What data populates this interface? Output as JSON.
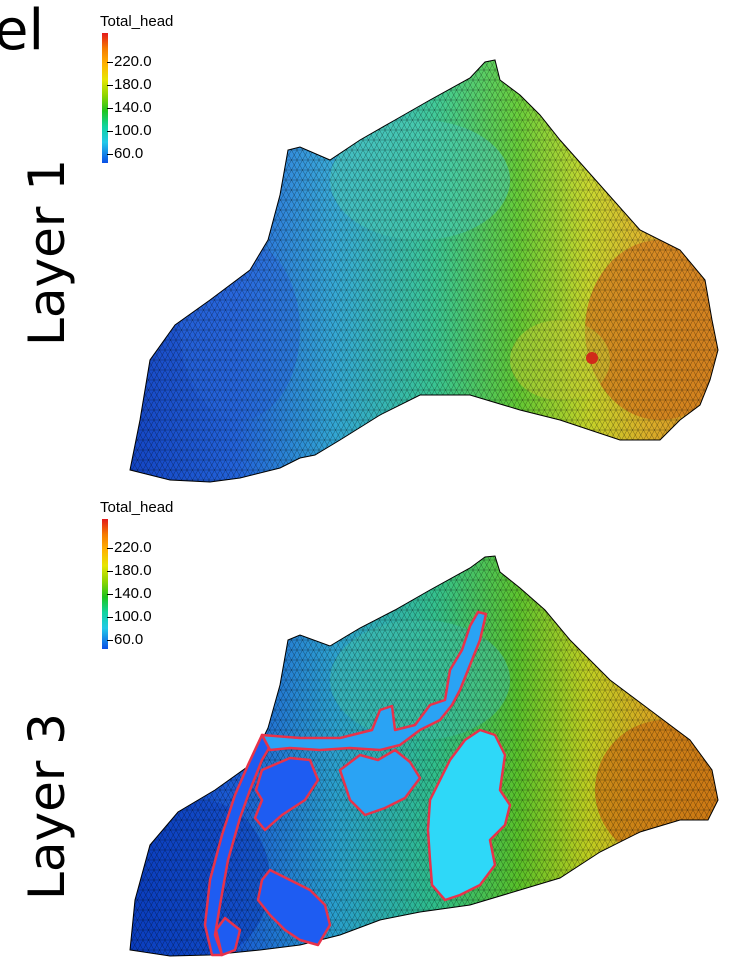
{
  "page": {
    "partial_title": "el",
    "panels": [
      {
        "label": "Layer 1"
      },
      {
        "label": "Layer 3"
      }
    ]
  },
  "legend": {
    "title": "Total_head",
    "ticks": [
      "220.0",
      "180.0",
      "140.0",
      "100.0",
      "60.0"
    ],
    "colors": {
      "low": "#0a4fe6",
      "mid_low": "#22c9e8",
      "mid": "#1ec41e",
      "mid_high": "#e6e600",
      "high": "#f57c00",
      "max": "#e31a1c"
    }
  },
  "zones": {
    "outline_color": "#e8324a",
    "fill_dark": "#1e5cf2",
    "fill_mid": "#2aa3f4",
    "fill_light": "#2ed8f8"
  }
}
